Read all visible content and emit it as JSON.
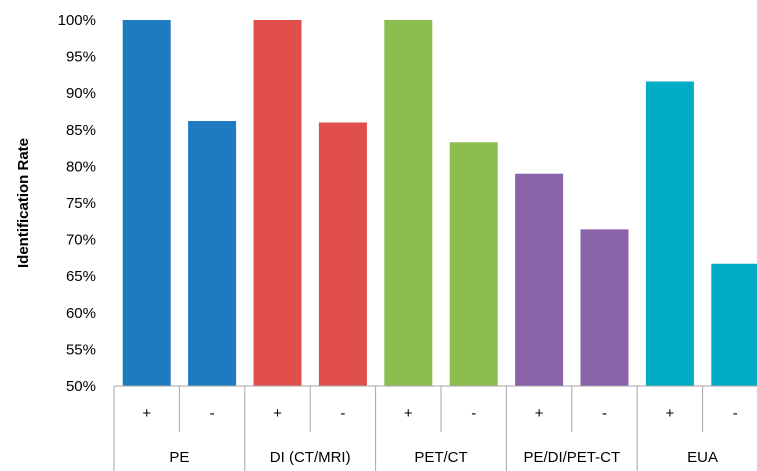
{
  "chart_data": {
    "type": "bar",
    "ylabel": "Identification Rate",
    "xlabel": "",
    "ylim": [
      0.5,
      1.0
    ],
    "yticks": [
      "50%",
      "55%",
      "60%",
      "65%",
      "70%",
      "75%",
      "80%",
      "85%",
      "90%",
      "95%",
      "100%"
    ],
    "grid": false,
    "legend": "none",
    "groups": [
      {
        "name": "PE",
        "color": "#1f7bc0",
        "bars": [
          {
            "label": "+",
            "value": 1.0
          },
          {
            "label": "-",
            "value": 0.862
          }
        ]
      },
      {
        "name": "DI (CT/MRI)",
        "color": "#e04e4b",
        "bars": [
          {
            "label": "+",
            "value": 1.0
          },
          {
            "label": "-",
            "value": 0.86
          }
        ]
      },
      {
        "name": "PET/CT",
        "color": "#8cbd4f",
        "bars": [
          {
            "label": "+",
            "value": 1.0
          },
          {
            "label": "-",
            "value": 0.833
          }
        ]
      },
      {
        "name": "PE/DI/PET-CT",
        "color": "#8a64a8",
        "bars": [
          {
            "label": "+",
            "value": 0.79
          },
          {
            "label": "-",
            "value": 0.714
          }
        ]
      },
      {
        "name": "EUA",
        "color": "#00acc6",
        "bars": [
          {
            "label": "+",
            "value": 0.916
          },
          {
            "label": "-",
            "value": 0.667
          }
        ]
      }
    ]
  }
}
